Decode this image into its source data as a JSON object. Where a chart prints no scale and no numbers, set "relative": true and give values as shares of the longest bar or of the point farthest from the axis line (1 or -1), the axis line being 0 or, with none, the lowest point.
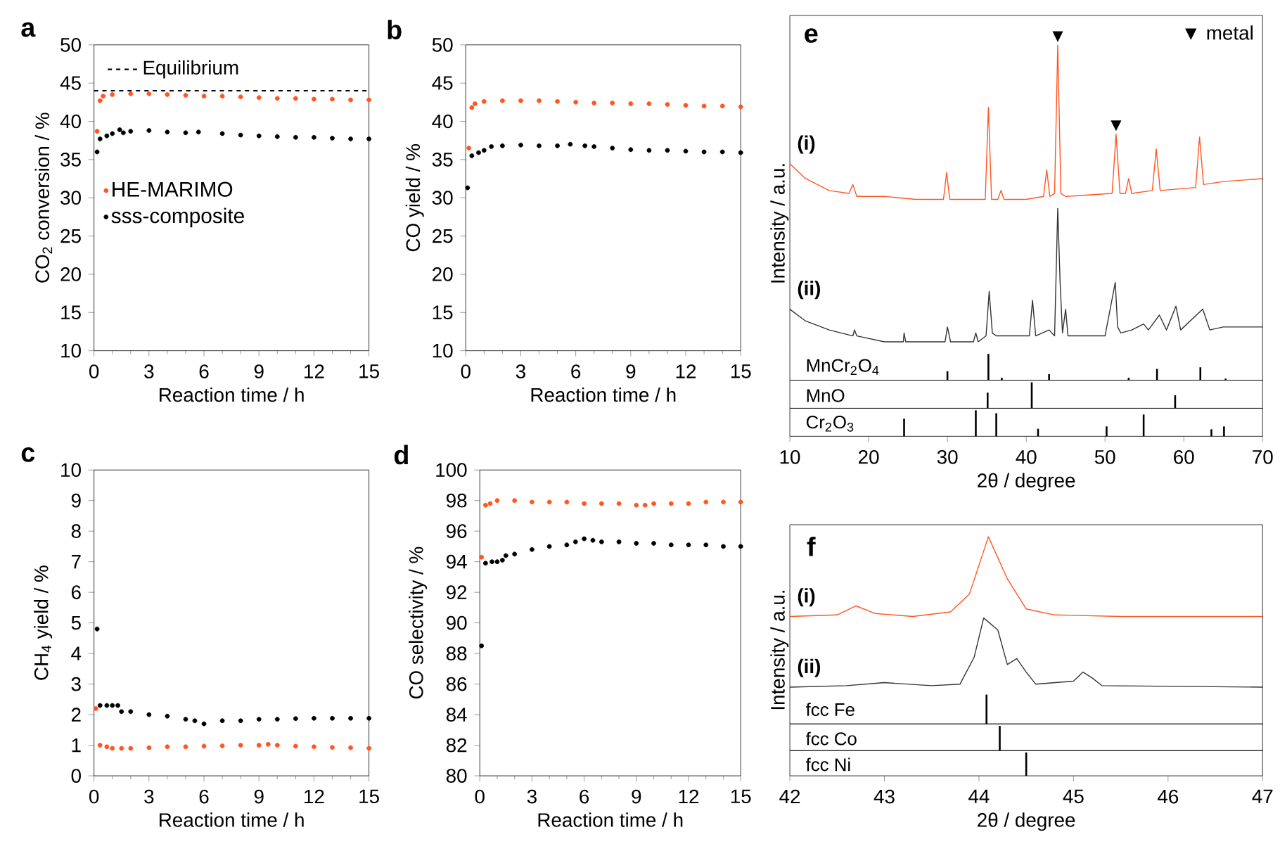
{
  "chart_data": [
    {
      "type": "scatter",
      "title": "a",
      "xlabel": "Reaction time / h",
      "ylabel": "CO$_{2}$ conversion / %",
      "xlim": [
        0,
        15
      ],
      "xticks": [
        0,
        3,
        6,
        9,
        12,
        15
      ],
      "ylim": [
        10,
        50
      ],
      "yticks": [
        10,
        15,
        20,
        25,
        30,
        35,
        40,
        45,
        50
      ],
      "marker": "circle",
      "legend": "left",
      "ref_lines": [
        {
          "axis": "y",
          "value": 44,
          "label": "Equilibrium",
          "color": "#000000",
          "line_style": "dashed"
        }
      ],
      "series": [
        {
          "name": "HE-MARIMO",
          "color": "#ff5522",
          "x": [
            0.17,
            0.33,
            0.5,
            1,
            2,
            3,
            4,
            5,
            6,
            7,
            8,
            9,
            10,
            11,
            12,
            13,
            14,
            15
          ],
          "values": [
            38.7,
            42.7,
            43.3,
            43.5,
            43.6,
            43.6,
            43.5,
            43.4,
            43.3,
            43.3,
            43.2,
            43.1,
            43.0,
            43.0,
            42.9,
            42.9,
            42.8,
            42.8
          ]
        },
        {
          "name": "sss-composite",
          "color": "#000000",
          "x": [
            0.17,
            0.33,
            0.7,
            1,
            1.4,
            1.6,
            2,
            3,
            4,
            5,
            5.7,
            7,
            8,
            9,
            10,
            11,
            12,
            13,
            14,
            15
          ],
          "values": [
            36.0,
            37.7,
            38.1,
            38.4,
            38.9,
            38.5,
            38.7,
            38.8,
            38.6,
            38.5,
            38.6,
            38.4,
            38.2,
            38.1,
            38.0,
            37.9,
            37.9,
            37.8,
            37.7,
            37.7
          ]
        }
      ]
    },
    {
      "type": "scatter",
      "title": "b",
      "xlabel": "Reaction time / h",
      "ylabel": "CO yield / %",
      "xlim": [
        0,
        15
      ],
      "xticks": [
        0,
        3,
        6,
        9,
        12,
        15
      ],
      "ylim": [
        10,
        50
      ],
      "yticks": [
        10,
        15,
        20,
        25,
        30,
        35,
        40,
        45,
        50
      ],
      "marker": "circle",
      "series": [
        {
          "color": "#ff5522",
          "x": [
            0.17,
            0.33,
            0.5,
            1,
            2,
            3,
            4,
            5,
            6,
            7,
            8,
            9,
            10,
            11,
            12,
            13,
            14,
            15
          ],
          "values": [
            36.5,
            41.8,
            42.3,
            42.6,
            42.7,
            42.7,
            42.7,
            42.6,
            42.5,
            42.4,
            42.4,
            42.3,
            42.3,
            42.2,
            42.1,
            42.0,
            42.0,
            41.9
          ]
        },
        {
          "color": "#000000",
          "x": [
            0.1,
            0.33,
            0.7,
            1,
            1.4,
            2,
            3,
            4,
            5,
            5.7,
            6.5,
            7,
            8,
            9,
            10,
            11,
            12,
            13,
            14,
            15
          ],
          "values": [
            31.3,
            35.5,
            35.9,
            36.2,
            36.7,
            36.8,
            36.9,
            36.8,
            36.8,
            37.0,
            36.8,
            36.7,
            36.5,
            36.3,
            36.2,
            36.2,
            36.1,
            36.0,
            36.0,
            35.9
          ]
        }
      ]
    },
    {
      "type": "scatter",
      "title": "c",
      "xlabel": "Reaction time / h",
      "ylabel": "CH$_{4}$ yield / %",
      "xlim": [
        0,
        15
      ],
      "xticks": [
        0,
        3,
        6,
        9,
        12,
        15
      ],
      "ylim": [
        0,
        10
      ],
      "yticks": [
        0,
        1,
        2,
        3,
        4,
        5,
        6,
        7,
        8,
        9,
        10
      ],
      "marker": "circle",
      "series": [
        {
          "color": "#ff5522",
          "x": [
            0.1,
            0.33,
            0.7,
            1,
            1.5,
            2,
            3,
            4,
            5,
            6,
            7,
            8,
            9,
            9.5,
            10,
            11,
            12,
            13,
            14,
            15
          ],
          "values": [
            2.2,
            1.0,
            0.95,
            0.9,
            0.9,
            0.9,
            0.92,
            0.95,
            0.95,
            0.97,
            0.98,
            1.0,
            1.0,
            1.03,
            1.0,
            0.97,
            0.95,
            0.93,
            0.92,
            0.9
          ]
        },
        {
          "color": "#000000",
          "x": [
            0.17,
            0.33,
            0.7,
            1,
            1.3,
            1.5,
            2,
            3,
            4,
            5,
            5.5,
            6,
            7,
            8,
            9,
            10,
            11,
            12,
            13,
            14,
            15
          ],
          "values": [
            4.8,
            2.3,
            2.3,
            2.3,
            2.3,
            2.1,
            2.1,
            2.0,
            1.95,
            1.85,
            1.8,
            1.7,
            1.8,
            1.8,
            1.85,
            1.85,
            1.87,
            1.88,
            1.88,
            1.88,
            1.88
          ]
        }
      ]
    },
    {
      "type": "scatter",
      "title": "d",
      "xlabel": "Reaction time / h",
      "ylabel": "CO selectivity / %",
      "xlim": [
        0,
        15
      ],
      "xticks": [
        0,
        3,
        6,
        9,
        12,
        15
      ],
      "ylim": [
        80,
        100
      ],
      "yticks": [
        80,
        82,
        84,
        86,
        88,
        90,
        92,
        94,
        96,
        98,
        100
      ],
      "marker": "circle",
      "series": [
        {
          "color": "#ff5522",
          "x": [
            0.1,
            0.33,
            0.6,
            1,
            2,
            3,
            4,
            5,
            6,
            7,
            8,
            9,
            9.5,
            10,
            11,
            12,
            13,
            14,
            15
          ],
          "values": [
            94.3,
            97.7,
            97.8,
            98.0,
            98.0,
            97.9,
            97.9,
            97.9,
            97.8,
            97.8,
            97.8,
            97.7,
            97.7,
            97.8,
            97.8,
            97.8,
            97.9,
            97.9,
            97.9
          ]
        },
        {
          "color": "#000000",
          "x": [
            0.1,
            0.33,
            0.7,
            1,
            1.3,
            1.5,
            2,
            3,
            4,
            5,
            5.5,
            6,
            6.5,
            7,
            8,
            9,
            10,
            11,
            12,
            13,
            14,
            15
          ],
          "values": [
            88.5,
            93.9,
            94.0,
            94.0,
            94.1,
            94.4,
            94.5,
            94.8,
            95.0,
            95.1,
            95.3,
            95.5,
            95.4,
            95.3,
            95.3,
            95.2,
            95.2,
            95.1,
            95.1,
            95.1,
            95.0,
            95.0
          ]
        }
      ]
    },
    {
      "type": "line",
      "title": "e",
      "ylabel": "Intensity / a.u.",
      "relative": true,
      "xlim": [
        10,
        70
      ],
      "tick_labels": false,
      "annotations": [
        "▼ metal",
        {
          "text": "▼",
          "x": 44,
          "y": 1.0
        },
        {
          "text": "▼",
          "x": 51.4,
          "y": 0.7
        }
      ],
      "series": [
        {
          "name": "(i)",
          "color": "#ff5522",
          "x": [
            10,
            12,
            15,
            17.5,
            18,
            18.5,
            22,
            26,
            29.5,
            29.9,
            30.3,
            34.8,
            35.2,
            35.6,
            36.4,
            36.8,
            37.2,
            40,
            42.2,
            42.6,
            43.0,
            43.6,
            44.0,
            44.4,
            45,
            50.9,
            51.4,
            51.9,
            52.6,
            53.0,
            53.4,
            56.0,
            56.5,
            57.0,
            61.5,
            62.0,
            62.5,
            65,
            70
          ],
          "values": [
            0.6,
            0.55,
            0.51,
            0.5,
            0.53,
            0.49,
            0.49,
            0.48,
            0.48,
            0.57,
            0.48,
            0.48,
            0.79,
            0.48,
            0.48,
            0.51,
            0.48,
            0.48,
            0.49,
            0.58,
            0.49,
            0.5,
            1.0,
            0.5,
            0.49,
            0.5,
            0.7,
            0.5,
            0.5,
            0.55,
            0.5,
            0.51,
            0.65,
            0.51,
            0.52,
            0.69,
            0.53,
            0.54,
            0.55
          ]
        },
        {
          "name": "(ii)",
          "color": "#333333",
          "x": [
            10,
            12,
            15,
            18,
            18.2,
            18.5,
            22,
            24.4,
            24.5,
            24.7,
            28,
            29.7,
            30.0,
            30.4,
            33.3,
            33.6,
            33.9,
            34.9,
            35.3,
            35.7,
            36.2,
            40.4,
            40.8,
            41.2,
            42.9,
            43.6,
            44.0,
            44.3,
            44.6,
            45.0,
            45.3,
            50,
            51.3,
            51.6,
            52,
            53.4,
            54.9,
            55.5,
            56.9,
            57.8,
            59.0,
            59.6,
            62.4,
            63.3,
            65,
            70
          ],
          "values": [
            0.11,
            0.07,
            0.04,
            0.02,
            0.04,
            0.02,
            0.0,
            0.0,
            0.03,
            0.0,
            0.0,
            0.0,
            0.05,
            0.0,
            0.0,
            0.03,
            0.0,
            0.02,
            0.17,
            0.03,
            0.02,
            0.02,
            0.14,
            0.02,
            0.04,
            0.02,
            0.45,
            0.2,
            0.03,
            0.11,
            0.02,
            0.02,
            0.2,
            0.05,
            0.03,
            0.04,
            0.06,
            0.04,
            0.09,
            0.04,
            0.12,
            0.04,
            0.11,
            0.04,
            0.05,
            0.05
          ]
        }
      ]
    },
    {
      "type": "bar",
      "relative": true,
      "xlim": [
        10,
        70
      ],
      "tick_labels": false,
      "series": [
        {
          "name": "MnCr$_{2}$O$_{4}$",
          "color": "#000000",
          "x": [
            30.0,
            35.2,
            36.9,
            42.9,
            53.0,
            56.6,
            62.1,
            65.3
          ],
          "values": [
            0.34,
            1,
            0.09,
            0.23,
            0.09,
            0.43,
            0.49,
            0.06
          ]
        }
      ]
    },
    {
      "type": "bar",
      "relative": true,
      "xlim": [
        10,
        70
      ],
      "tick_labels": false,
      "series": [
        {
          "name": "MnO",
          "color": "#000000",
          "x": [
            35.1,
            40.7,
            58.9
          ],
          "values": [
            0.6,
            1,
            0.5
          ]
        }
      ]
    },
    {
      "type": "bar",
      "relative": true,
      "xlim": [
        10,
        70
      ],
      "xticks": [
        10,
        20,
        30,
        40,
        50,
        60,
        70
      ],
      "tick_labels": "x",
      "xlabel": "2θ / degree",
      "series": [
        {
          "name": "Cr$_{2}$O$_{3}$",
          "color": "#000000",
          "x": [
            24.5,
            33.6,
            36.2,
            41.5,
            50.2,
            54.9,
            63.5,
            65.1
          ],
          "values": [
            0.68,
            1,
            0.89,
            0.29,
            0.38,
            0.84,
            0.27,
            0.38
          ]
        }
      ]
    },
    {
      "type": "line",
      "title": "f",
      "ylabel": "Intensity / a.u.",
      "relative": true,
      "xlim": [
        42,
        47
      ],
      "tick_labels": false,
      "series": [
        {
          "name": "(i)",
          "color": "#ff5522",
          "x": [
            42,
            42.5,
            42.7,
            42.9,
            43.3,
            43.7,
            43.9,
            44.1,
            44.3,
            44.5,
            44.8,
            45.5,
            47
          ],
          "values": [
            0.47,
            0.48,
            0.54,
            0.49,
            0.47,
            0.5,
            0.62,
            1.0,
            0.72,
            0.52,
            0.48,
            0.47,
            0.47
          ]
        },
        {
          "name": "(ii)",
          "color": "#333333",
          "x": [
            42,
            42.6,
            43.0,
            43.5,
            43.8,
            43.95,
            44.05,
            44.2,
            44.3,
            44.4,
            44.5,
            44.6,
            45.0,
            45.1,
            45.2,
            45.3,
            47
          ],
          "values": [
            0.0,
            0.01,
            0.03,
            0.01,
            0.02,
            0.2,
            0.46,
            0.38,
            0.15,
            0.19,
            0.1,
            0.02,
            0.04,
            0.1,
            0.06,
            0.01,
            0.0
          ]
        }
      ]
    },
    {
      "type": "bar",
      "relative": true,
      "xlim": [
        42,
        47
      ],
      "tick_labels": false,
      "series": [
        {
          "name": "fcc Fe",
          "color": "#000000",
          "x": [
            44.08
          ],
          "values": [
            1
          ]
        }
      ]
    },
    {
      "type": "bar",
      "relative": true,
      "xlim": [
        42,
        47
      ],
      "tick_labels": false,
      "series": [
        {
          "name": "fcc  Co",
          "color": "#000000",
          "x": [
            44.22
          ],
          "values": [
            1
          ]
        }
      ]
    },
    {
      "type": "bar",
      "relative": true,
      "xlim": [
        42,
        47
      ],
      "xticks": [
        42,
        43,
        44,
        45,
        46,
        47
      ],
      "tick_labels": "x",
      "xlabel": "2θ / degree",
      "series": [
        {
          "name": "fcc Ni",
          "color": "#000000",
          "x": [
            44.5
          ],
          "values": [
            1
          ]
        }
      ]
    }
  ]
}
